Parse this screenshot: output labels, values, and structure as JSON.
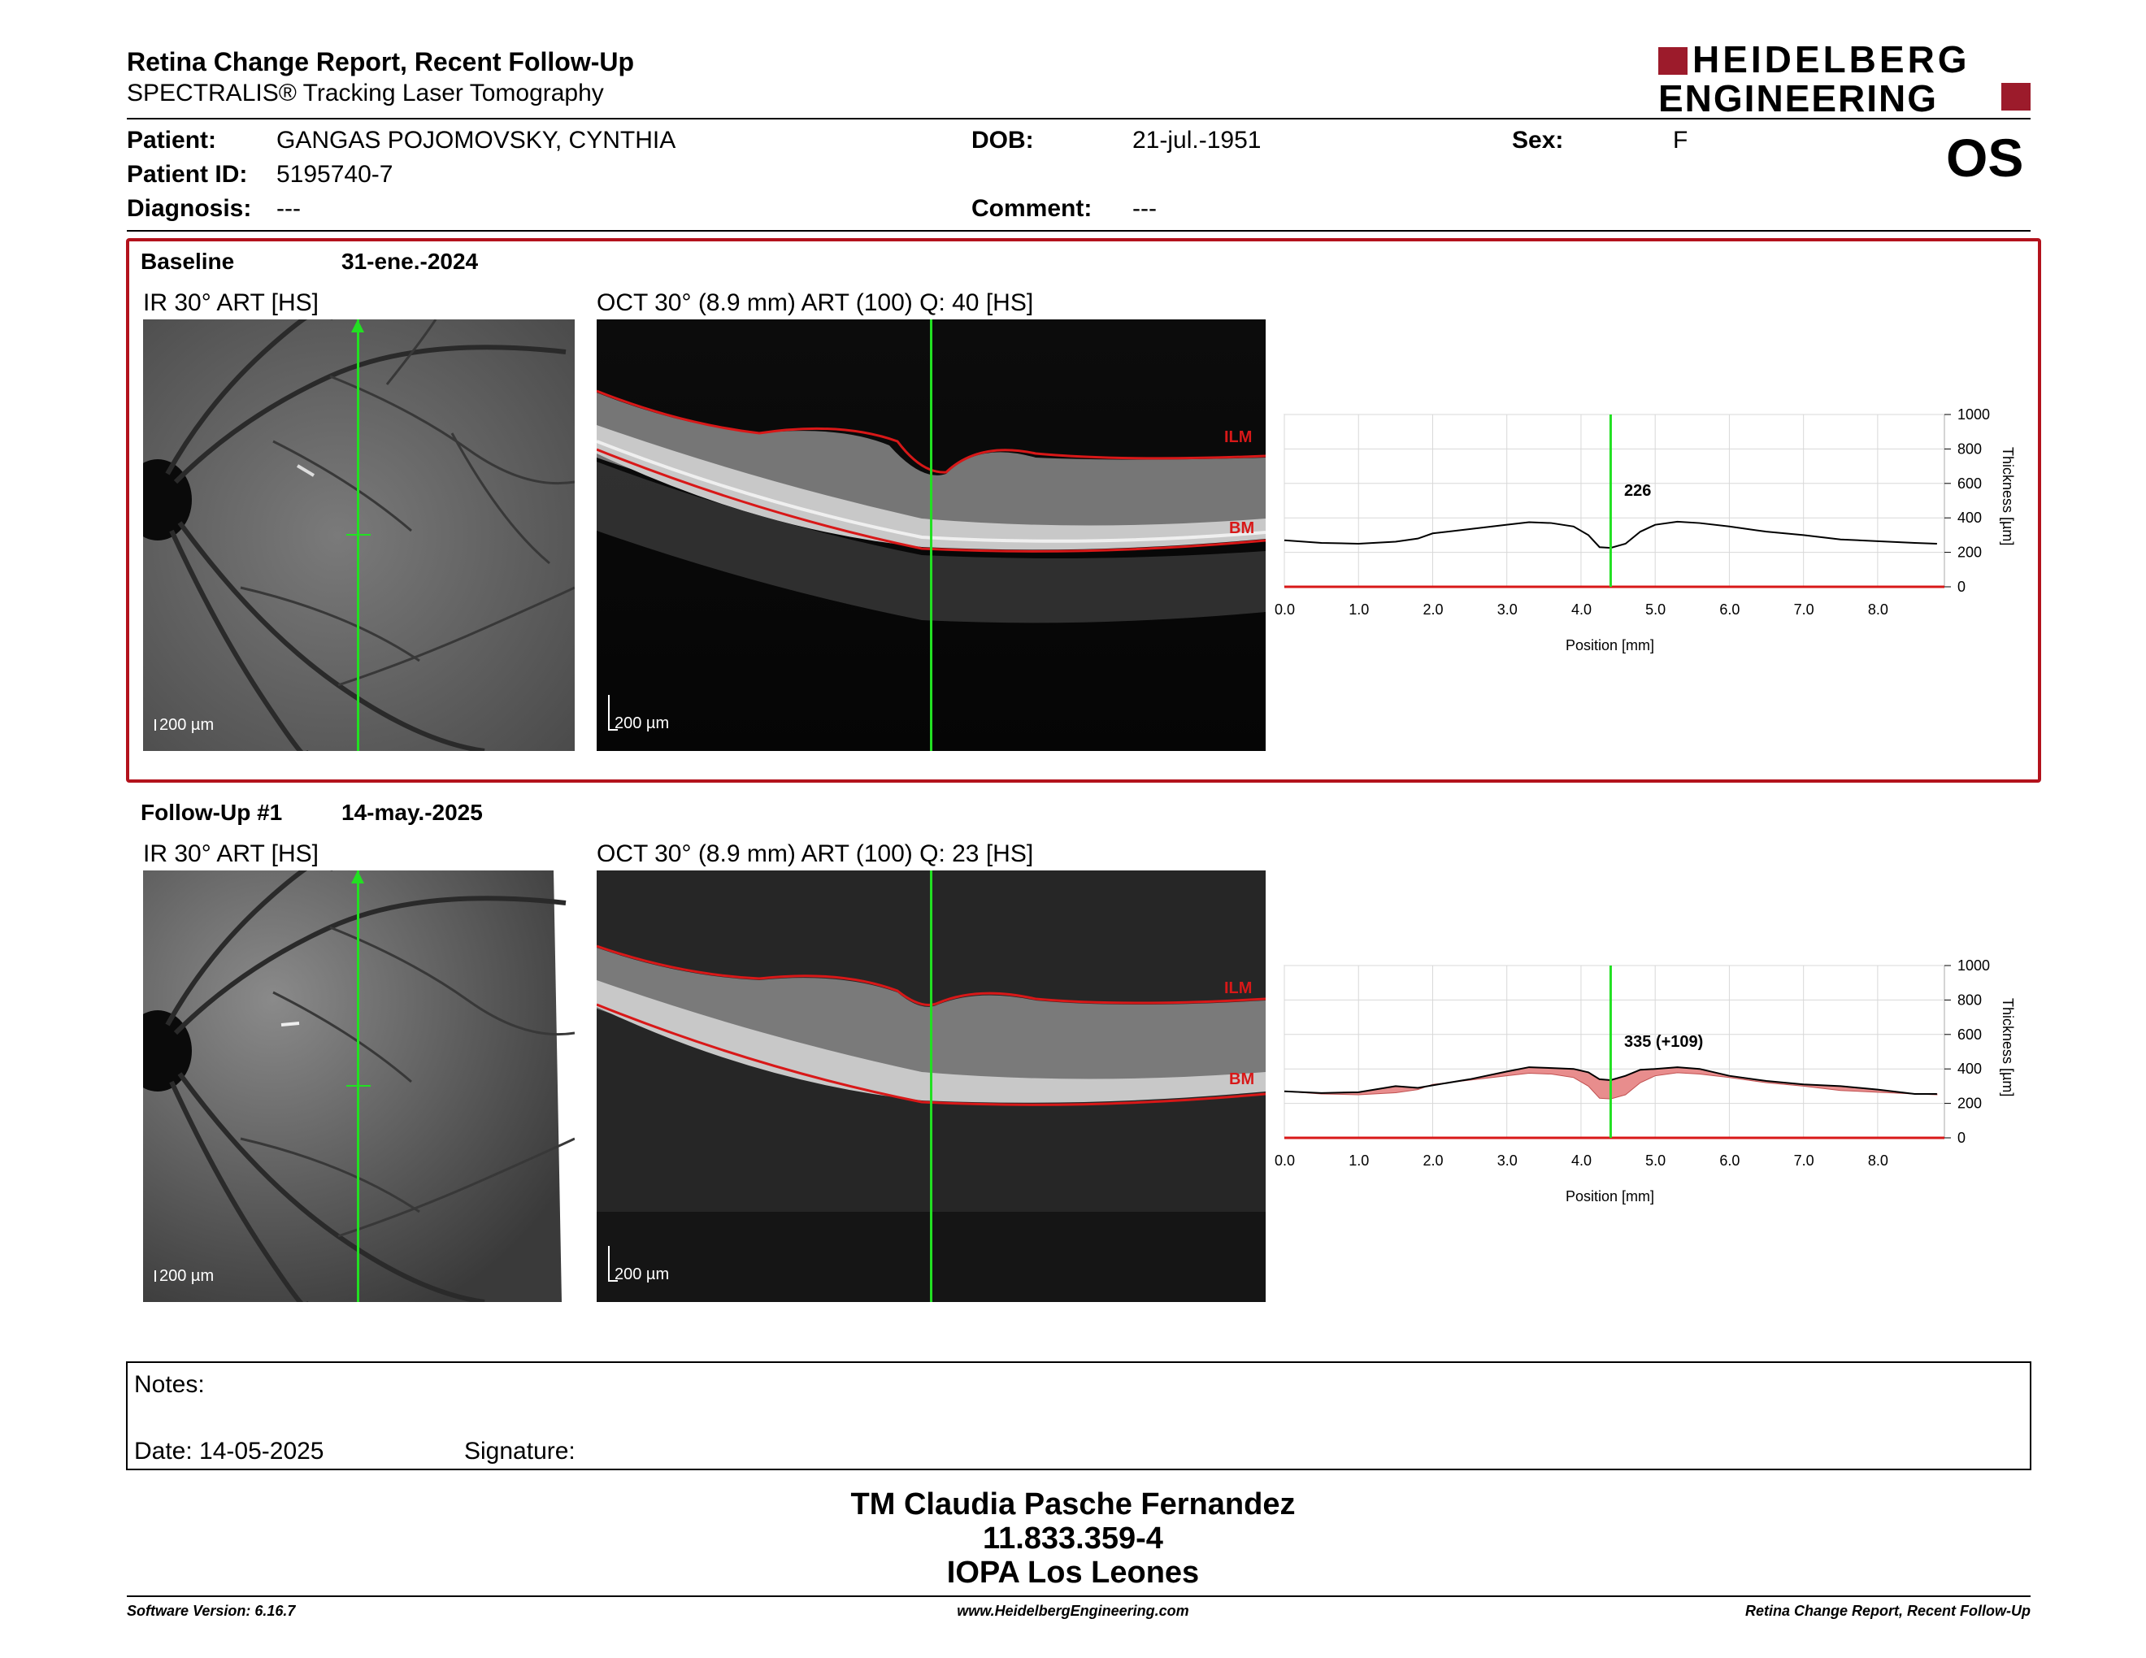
{
  "header": {
    "title": "Retina Change Report, Recent Follow-Up",
    "subtitle": "SPECTRALIS® Tracking Laser Tomography",
    "logo_line1": "HEIDELBERG",
    "logo_line2": "ENGINEERING",
    "eye": "OS"
  },
  "patient": {
    "patient_label": "Patient:",
    "patient_name": "GANGAS POJOMOVSKY, CYNTHIA",
    "id_label": "Patient ID:",
    "id": "5195740-7",
    "diagnosis_label": "Diagnosis:",
    "diagnosis": "---",
    "dob_label": "DOB:",
    "dob": "21-jul.-1951",
    "comment_label": "Comment:",
    "comment": "---",
    "sex_label": "Sex:",
    "sex": "F"
  },
  "exams": [
    {
      "label": "Baseline",
      "date": "31-ene.-2024",
      "ir_label": "IR 30° ART [HS]",
      "oct_label": "OCT 30° (8.9 mm) ART (100) Q: 40 [HS]",
      "scale": "200 µm",
      "ilm": "ILM",
      "bm": "BM",
      "readout": "226"
    },
    {
      "label": "Follow-Up #1",
      "date": "14-may.-2025",
      "ir_label": "IR 30° ART [HS]",
      "oct_label": "OCT 30° (8.9 mm) ART (100) Q: 23 [HS]",
      "scale": "200 µm",
      "ilm": "ILM",
      "bm": "BM",
      "readout": "335 (+109)"
    }
  ],
  "chart_data": [
    {
      "type": "line",
      "xlabel": "Position [mm]",
      "ylabel": "Thickness [µm]",
      "xlim": [
        0,
        8.9
      ],
      "ylim": [
        0,
        1000
      ],
      "xticks": [
        "0.0",
        "1.0",
        "2.0",
        "3.0",
        "4.0",
        "5.0",
        "6.0",
        "7.0",
        "8.0"
      ],
      "yticks": [
        "0",
        "200",
        "400",
        "600",
        "800",
        "1000"
      ],
      "cursor_x": 4.4,
      "series": [
        {
          "x": [
            0,
            0.5,
            1.0,
            1.5,
            1.8,
            2.0,
            2.5,
            3.0,
            3.3,
            3.6,
            3.9,
            4.1,
            4.25,
            4.4,
            4.6,
            4.8,
            5.0,
            5.3,
            5.6,
            6.0,
            6.5,
            7.0,
            7.5,
            8.0,
            8.5,
            8.8
          ],
          "values": [
            270,
            255,
            250,
            262,
            280,
            310,
            335,
            360,
            375,
            370,
            350,
            300,
            230,
            226,
            250,
            320,
            360,
            378,
            370,
            350,
            320,
            300,
            275,
            265,
            255,
            250
          ]
        }
      ]
    },
    {
      "type": "area",
      "xlabel": "Position [mm]",
      "ylabel": "Thickness [µm]",
      "xlim": [
        0,
        8.9
      ],
      "ylim": [
        0,
        1000
      ],
      "xticks": [
        "0.0",
        "1.0",
        "2.0",
        "3.0",
        "4.0",
        "5.0",
        "6.0",
        "7.0",
        "8.0"
      ],
      "yticks": [
        "0",
        "200",
        "400",
        "600",
        "800",
        "1000"
      ],
      "cursor_x": 4.4,
      "series": [
        {
          "x": [
            0,
            0.5,
            1.0,
            1.5,
            1.8,
            2.0,
            2.5,
            3.0,
            3.3,
            3.6,
            3.9,
            4.1,
            4.25,
            4.4,
            4.6,
            4.8,
            5.0,
            5.3,
            5.6,
            6.0,
            6.5,
            7.0,
            7.5,
            8.0,
            8.5,
            8.8
          ],
          "values": [
            270,
            255,
            250,
            262,
            280,
            310,
            335,
            360,
            375,
            370,
            350,
            300,
            230,
            226,
            250,
            320,
            360,
            378,
            370,
            350,
            320,
            300,
            275,
            265,
            255,
            250
          ]
        },
        {
          "x": [
            0,
            0.5,
            1.0,
            1.5,
            1.8,
            2.0,
            2.5,
            3.0,
            3.3,
            3.6,
            3.9,
            4.1,
            4.25,
            4.4,
            4.6,
            4.8,
            5.0,
            5.3,
            5.6,
            6.0,
            6.5,
            7.0,
            7.5,
            8.0,
            8.5,
            8.8
          ],
          "values": [
            270,
            260,
            265,
            300,
            290,
            305,
            340,
            385,
            410,
            405,
            400,
            380,
            340,
            335,
            360,
            395,
            400,
            410,
            400,
            360,
            330,
            310,
            300,
            280,
            255,
            255
          ]
        }
      ]
    }
  ],
  "notes": {
    "label": "Notes:",
    "date_label": "Date: 14-05-2025",
    "signature_label": "Signature:"
  },
  "operator": {
    "name": "TM Claudia Pasche Fernandez",
    "id": "11.833.359-4",
    "clinic": "IOPA Los Leones"
  },
  "footer": {
    "software": "Software Version: 6.16.7",
    "url": "www.HeidelbergEngineering.com",
    "report": "Retina Change Report, Recent Follow-Up"
  },
  "colors": {
    "brand_red": "#9c1b2b",
    "cursor_green": "#22e022",
    "seg_red": "#d81818",
    "diff_fill": "#e88d8d"
  }
}
